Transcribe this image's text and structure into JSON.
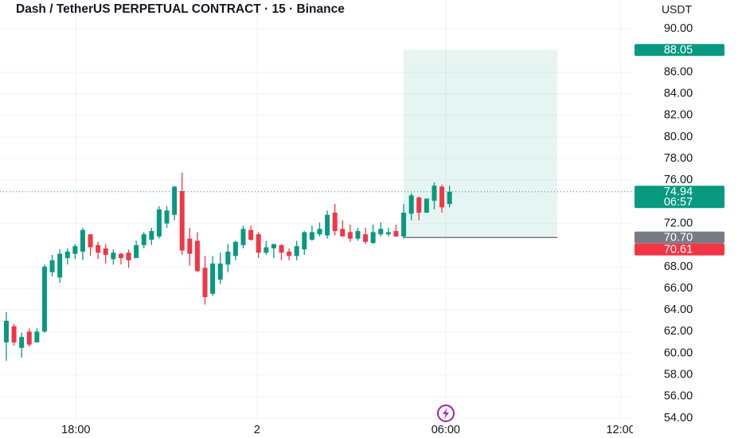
{
  "chart_data": {
    "type": "candlestick",
    "title": "Dash / TetherUS PERPETUAL CONTRACT · 15 · Binance",
    "currency": "USDT",
    "open": [
      61,
      62.5,
      60.5,
      62,
      61,
      62,
      67.5,
      67,
      68.8,
      69.2,
      69.4,
      71,
      70,
      69.7,
      68.7,
      69.2,
      69.3,
      68.8,
      70,
      70.5,
      70.8,
      72,
      72.8,
      75,
      70.6,
      70.4,
      67.9,
      65.5,
      66.8,
      68.2,
      69,
      70,
      71.4,
      71,
      69.3,
      69.7,
      70,
      69.4,
      69,
      69.6,
      70.5,
      71,
      70.9,
      73,
      71.5,
      71.2,
      70.6,
      71,
      70.2,
      71,
      71,
      71.3,
      70.8,
      72.9,
      74.4,
      73,
      74.1,
      75.4,
      73.8
    ],
    "high": [
      63.8,
      62.7,
      61.9,
      62.3,
      62.3,
      68.2,
      69.1,
      69.6,
      69.7,
      70.1,
      71.6,
      70.8,
      70.3,
      70.1,
      69.6,
      69.3,
      69.6,
      70.4,
      71.2,
      71.6,
      73.6,
      73.6,
      75.5,
      76.7,
      71.6,
      71.2,
      69,
      69,
      69.3,
      70.1,
      70.4,
      71.8,
      71.8,
      71.2,
      70.4,
      70.1,
      70.1,
      69.7,
      70.4,
      71.3,
      71.8,
      72.1,
      73.2,
      73.8,
      72.3,
      71.9,
      71.6,
      71.6,
      71.9,
      72.1,
      71.6,
      71.9,
      73.8,
      74.8,
      74.5,
      74.3,
      75.8,
      75.6,
      75.5
    ],
    "low": [
      59.3,
      60.7,
      59.6,
      60.6,
      61,
      61.9,
      67.1,
      66.5,
      68.2,
      68.7,
      68.6,
      69,
      68.7,
      68.3,
      68.2,
      68.2,
      67.9,
      68.8,
      69.7,
      70,
      70.6,
      71.6,
      72.3,
      69.1,
      68.1,
      67.5,
      64.5,
      65.3,
      66.4,
      67.5,
      68.6,
      69.7,
      70.4,
      68.8,
      69.1,
      68.8,
      68.6,
      68.6,
      68.6,
      69.1,
      70.4,
      70.8,
      70.6,
      70.9,
      70.8,
      70.3,
      70.4,
      70.1,
      70.1,
      70.8,
      70.8,
      70.8,
      70.6,
      72.3,
      72.3,
      73,
      73.3,
      73,
      73.5
    ],
    "close": [
      63,
      61,
      61.5,
      60.8,
      62,
      68,
      68.6,
      69.2,
      69.4,
      69.9,
      71.4,
      69.8,
      69.3,
      69.1,
      69.3,
      68.8,
      68.6,
      70,
      71,
      71.3,
      73.3,
      73.2,
      75.4,
      69.5,
      69.2,
      67.6,
      65.2,
      68.3,
      68.3,
      69.4,
      70.3,
      71.5,
      70.5,
      69.3,
      69.8,
      70.1,
      69.3,
      69,
      69.9,
      71.2,
      71.2,
      71.5,
      72.8,
      71.3,
      70.8,
      70.6,
      71.3,
      70.3,
      71.2,
      71.5,
      71.2,
      70.8,
      73,
      74.6,
      73,
      74.3,
      75.5,
      73.5,
      74.94
    ],
    "up_color": "#089981",
    "down_color": "#f23645",
    "ylim": [
      53.78,
      92.67
    ],
    "yticks": [
      {
        "value": 90,
        "label": "90.00"
      },
      {
        "value": 86,
        "label": "86.00"
      },
      {
        "value": 84,
        "label": "84.00"
      },
      {
        "value": 82,
        "label": "82.00"
      },
      {
        "value": 80,
        "label": "80.00"
      },
      {
        "value": 78,
        "label": "78.00"
      },
      {
        "value": 76,
        "label": "76.00"
      },
      {
        "value": 72,
        "label": "72.00"
      },
      {
        "value": 68,
        "label": "68.00"
      },
      {
        "value": 66,
        "label": "66.00"
      },
      {
        "value": 64,
        "label": "64.00"
      },
      {
        "value": 62,
        "label": "62.00"
      },
      {
        "value": 60,
        "label": "60.00"
      },
      {
        "value": 58,
        "label": "58.00"
      },
      {
        "value": 56,
        "label": "56.00"
      },
      {
        "value": 54,
        "label": "54.00"
      }
    ],
    "xlim": [
      -0.83,
      82
    ],
    "xticks": [
      {
        "value": 9.1,
        "label": "18:00"
      },
      {
        "value": 32.8,
        "label": "2"
      },
      {
        "value": 57.5,
        "label": "06:00"
      },
      {
        "value": 80.4,
        "label": "12:00"
      }
    ],
    "grid": true,
    "price_tags": [
      {
        "value": 88.05,
        "label": "88.05",
        "color": "#089981"
      },
      {
        "value": 74.94,
        "label": "74.94",
        "color": "#089981",
        "countdown": "06:57"
      },
      {
        "value": 70.7,
        "label": "70.70",
        "color": "#787b86"
      },
      {
        "value": 70.61,
        "label": "70.61",
        "color": "#f23645"
      }
    ],
    "position_bars": [
      52,
      72.1
    ],
    "position_color": "#089981"
  }
}
